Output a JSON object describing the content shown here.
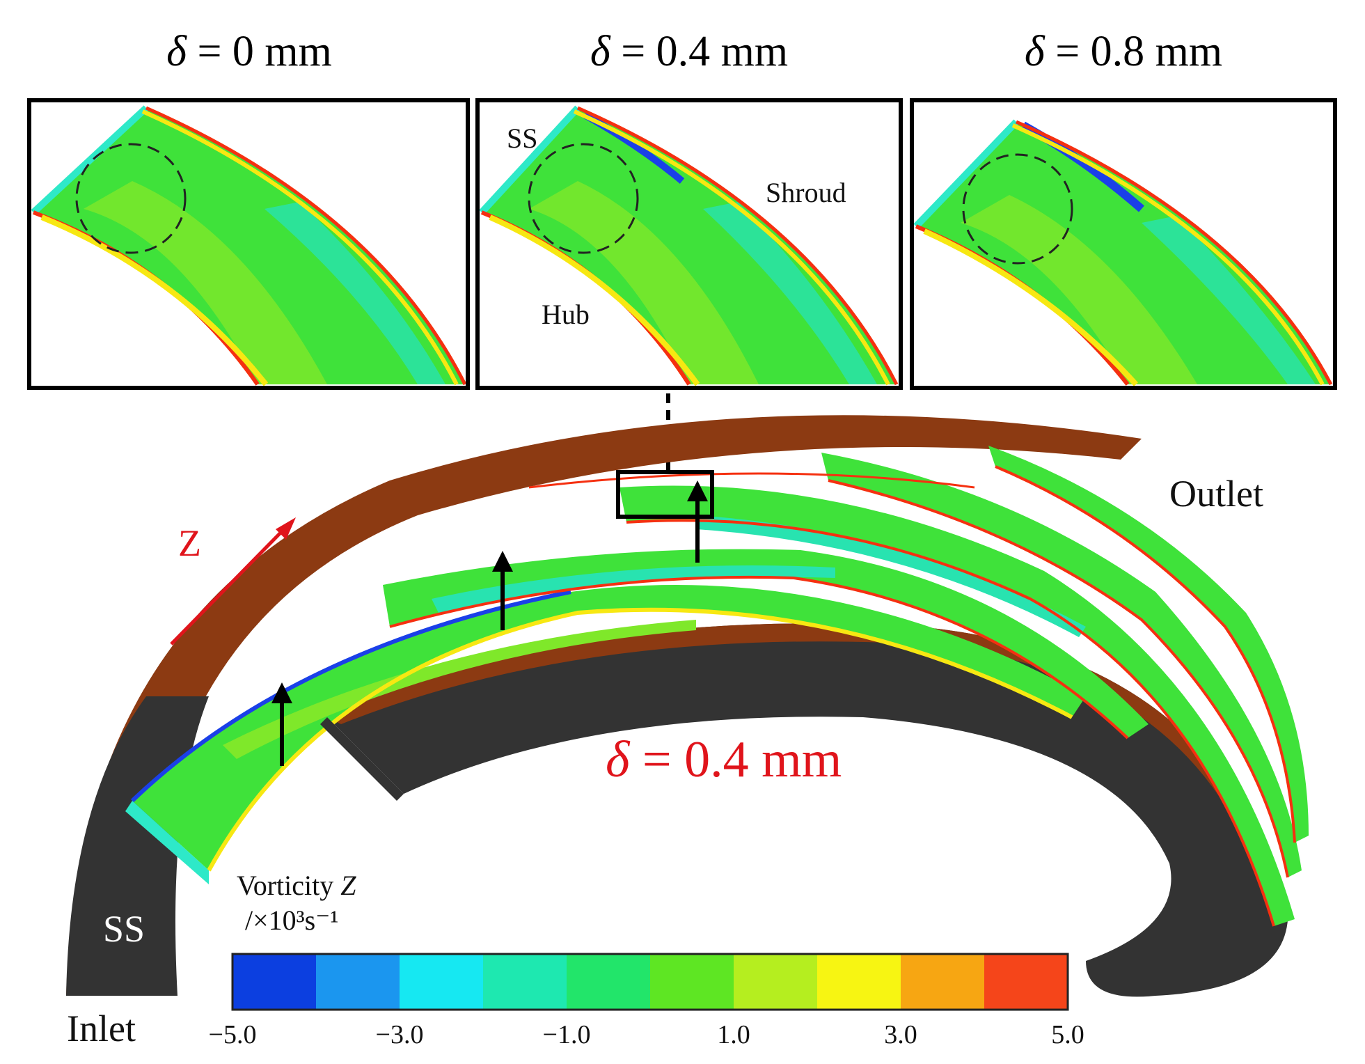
{
  "panels": [
    {
      "title_sym": "δ",
      "title_rest": " = 0 mm"
    },
    {
      "title_sym": "δ",
      "title_rest": " = 0.4 mm"
    },
    {
      "title_sym": "δ",
      "title_rest": " = 0.8 mm"
    }
  ],
  "panel_labels": {
    "ss": "SS",
    "shroud": "Shroud",
    "hub": "Hub"
  },
  "main": {
    "outlet": "Outlet",
    "inlet": "Inlet",
    "ss": "SS",
    "z_axis": "Z",
    "delta_sym": "δ",
    "delta_rest": " = 0.4 mm"
  },
  "colorbar": {
    "title_line1": "Vorticity ",
    "title_var": "Z",
    "title_line2": "/×10³s⁻¹",
    "colors": [
      "#0c3fe0",
      "#1b96ef",
      "#16e8f2",
      "#1ee8b0",
      "#22e56a",
      "#5ee623",
      "#b5ee1f",
      "#f7f512",
      "#f7a612",
      "#f5451a"
    ],
    "tick_labels": [
      "−5.0",
      "−3.0",
      "−1.0",
      "1.0",
      "3.0",
      "5.0"
    ],
    "min": -5.0,
    "max": 5.0
  },
  "colors": {
    "accent_red": "#e0141b",
    "shroud_brown": "#8c3a12",
    "hub_dark": "#333333"
  }
}
